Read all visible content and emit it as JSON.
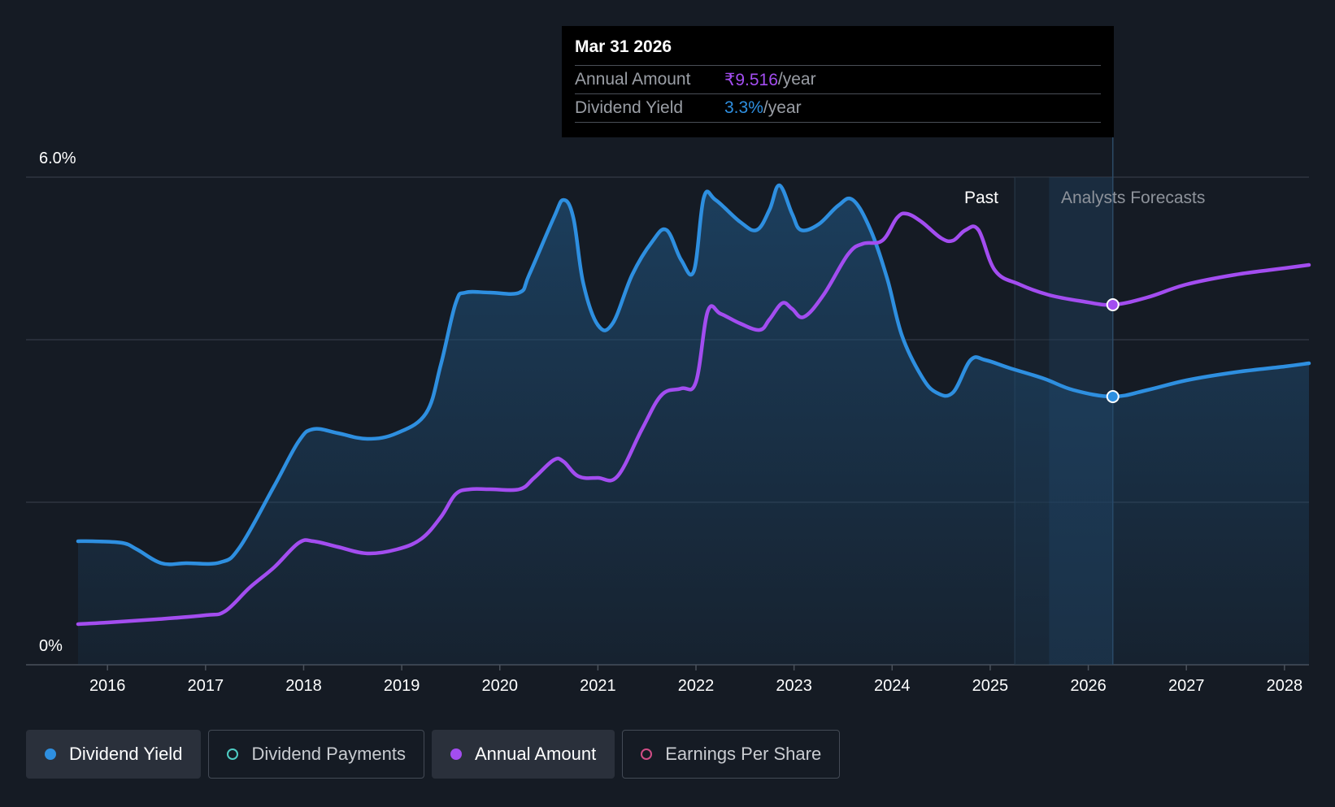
{
  "chart_data": {
    "type": "line",
    "y_axis": {
      "top_label": "6.0%",
      "bottom_label": "0%",
      "ylim": [
        0,
        6.0
      ],
      "gridlines": [
        0,
        2,
        4,
        6
      ]
    },
    "x_axis": {
      "ticks": [
        "2016",
        "2017",
        "2018",
        "2019",
        "2020",
        "2021",
        "2022",
        "2023",
        "2024",
        "2025",
        "2026",
        "2027",
        "2028"
      ],
      "xlim": [
        2015.7,
        2028.25
      ]
    },
    "regions": {
      "past_label": "Past",
      "forecast_label": "Analysts Forecasts",
      "past_start": 2025.25,
      "forecast_start": 2025.6,
      "cursor_x": 2026.25
    },
    "series": [
      {
        "name": "Dividend Yield",
        "color": "#2e8fe0",
        "filled": true,
        "points": [
          [
            2015.7,
            1.52
          ],
          [
            2015.85,
            1.52
          ],
          [
            2016.15,
            1.5
          ],
          [
            2016.3,
            1.42
          ],
          [
            2016.55,
            1.25
          ],
          [
            2016.8,
            1.25
          ],
          [
            2017.15,
            1.26
          ],
          [
            2017.35,
            1.45
          ],
          [
            2017.7,
            2.2
          ],
          [
            2017.95,
            2.75
          ],
          [
            2018.1,
            2.9
          ],
          [
            2018.35,
            2.85
          ],
          [
            2018.65,
            2.78
          ],
          [
            2018.95,
            2.85
          ],
          [
            2019.25,
            3.1
          ],
          [
            2019.4,
            3.7
          ],
          [
            2019.55,
            4.45
          ],
          [
            2019.65,
            4.58
          ],
          [
            2019.9,
            4.58
          ],
          [
            2020.2,
            4.58
          ],
          [
            2020.3,
            4.8
          ],
          [
            2020.55,
            5.5
          ],
          [
            2020.65,
            5.72
          ],
          [
            2020.75,
            5.5
          ],
          [
            2020.85,
            4.7
          ],
          [
            2021.0,
            4.18
          ],
          [
            2021.15,
            4.2
          ],
          [
            2021.35,
            4.8
          ],
          [
            2021.55,
            5.2
          ],
          [
            2021.7,
            5.35
          ],
          [
            2021.85,
            4.98
          ],
          [
            2021.98,
            4.85
          ],
          [
            2022.08,
            5.75
          ],
          [
            2022.2,
            5.72
          ],
          [
            2022.45,
            5.45
          ],
          [
            2022.62,
            5.35
          ],
          [
            2022.75,
            5.6
          ],
          [
            2022.85,
            5.9
          ],
          [
            2022.98,
            5.55
          ],
          [
            2023.07,
            5.35
          ],
          [
            2023.25,
            5.42
          ],
          [
            2023.45,
            5.65
          ],
          [
            2023.6,
            5.72
          ],
          [
            2023.78,
            5.35
          ],
          [
            2023.95,
            4.75
          ],
          [
            2024.1,
            4.05
          ],
          [
            2024.3,
            3.55
          ],
          [
            2024.45,
            3.35
          ],
          [
            2024.62,
            3.35
          ],
          [
            2024.8,
            3.75
          ],
          [
            2024.95,
            3.75
          ],
          [
            2025.2,
            3.65
          ],
          [
            2025.55,
            3.52
          ],
          [
            2025.85,
            3.38
          ],
          [
            2026.25,
            3.3
          ],
          [
            2026.6,
            3.38
          ],
          [
            2027.0,
            3.5
          ],
          [
            2027.5,
            3.6
          ],
          [
            2028.0,
            3.67
          ],
          [
            2028.25,
            3.71
          ]
        ]
      },
      {
        "name": "Annual Amount",
        "color": "#a34df0",
        "filled": false,
        "points": [
          [
            2015.7,
            0.5
          ],
          [
            2016.0,
            0.52
          ],
          [
            2016.5,
            0.56
          ],
          [
            2017.0,
            0.61
          ],
          [
            2017.2,
            0.66
          ],
          [
            2017.45,
            0.95
          ],
          [
            2017.7,
            1.2
          ],
          [
            2017.95,
            1.5
          ],
          [
            2018.1,
            1.52
          ],
          [
            2018.35,
            1.45
          ],
          [
            2018.65,
            1.37
          ],
          [
            2018.95,
            1.42
          ],
          [
            2019.2,
            1.55
          ],
          [
            2019.4,
            1.82
          ],
          [
            2019.55,
            2.1
          ],
          [
            2019.7,
            2.16
          ],
          [
            2019.9,
            2.16
          ],
          [
            2020.2,
            2.16
          ],
          [
            2020.35,
            2.3
          ],
          [
            2020.55,
            2.52
          ],
          [
            2020.65,
            2.5
          ],
          [
            2020.8,
            2.32
          ],
          [
            2021.0,
            2.3
          ],
          [
            2021.2,
            2.32
          ],
          [
            2021.45,
            2.9
          ],
          [
            2021.65,
            3.32
          ],
          [
            2021.85,
            3.4
          ],
          [
            2022.0,
            3.48
          ],
          [
            2022.12,
            4.35
          ],
          [
            2022.25,
            4.32
          ],
          [
            2022.45,
            4.2
          ],
          [
            2022.65,
            4.12
          ],
          [
            2022.75,
            4.25
          ],
          [
            2022.88,
            4.45
          ],
          [
            2022.98,
            4.38
          ],
          [
            2023.1,
            4.28
          ],
          [
            2023.3,
            4.55
          ],
          [
            2023.55,
            5.05
          ],
          [
            2023.7,
            5.18
          ],
          [
            2023.9,
            5.22
          ],
          [
            2024.05,
            5.5
          ],
          [
            2024.15,
            5.55
          ],
          [
            2024.3,
            5.45
          ],
          [
            2024.5,
            5.25
          ],
          [
            2024.62,
            5.22
          ],
          [
            2024.75,
            5.35
          ],
          [
            2024.88,
            5.35
          ],
          [
            2025.05,
            4.85
          ],
          [
            2025.3,
            4.68
          ],
          [
            2025.6,
            4.55
          ],
          [
            2025.95,
            4.47
          ],
          [
            2026.25,
            4.43
          ],
          [
            2026.6,
            4.52
          ],
          [
            2027.0,
            4.68
          ],
          [
            2027.5,
            4.8
          ],
          [
            2028.0,
            4.88
          ],
          [
            2028.25,
            4.92
          ]
        ]
      }
    ],
    "tooltip": {
      "date": "Mar 31 2026",
      "annual_amount_label": "Annual Amount",
      "annual_amount_value": "₹9.516",
      "annual_amount_unit": "/year",
      "dividend_yield_label": "Dividend Yield",
      "dividend_yield_value": "3.3%",
      "dividend_yield_unit": "/year"
    }
  },
  "legend": [
    {
      "label": "Dividend Yield",
      "active": true,
      "color": "#2e8fe0"
    },
    {
      "label": "Dividend Payments",
      "active": false,
      "color": "#4ecdc4"
    },
    {
      "label": "Annual Amount",
      "active": true,
      "color": "#a34df0"
    },
    {
      "label": "Earnings Per Share",
      "active": false,
      "color": "#d14d86"
    }
  ]
}
